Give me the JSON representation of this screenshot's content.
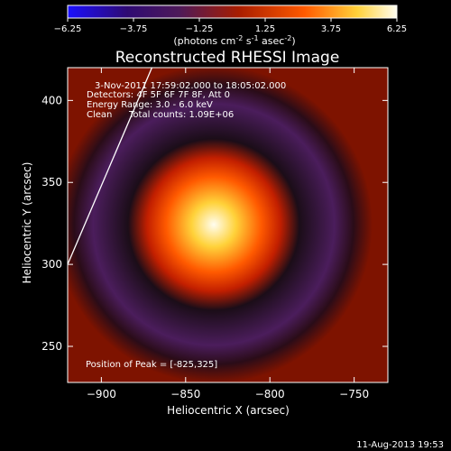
{
  "chart_data": {
    "type": "heatmap",
    "title": "Reconstructed RHESSI Image",
    "xlabel": "Heliocentric X (arcsec)",
    "ylabel": "Heliocentric Y (arcsec)",
    "xlim": [
      -920,
      -730
    ],
    "ylim": [
      228,
      420
    ],
    "x_ticks": [
      -900,
      -850,
      -800,
      -750
    ],
    "y_ticks": [
      250,
      300,
      350,
      400
    ],
    "colorbar": {
      "ticks": [
        -6.25,
        -3.75,
        -1.25,
        1.25,
        3.75,
        6.25
      ],
      "range": [
        -6.25,
        6.25
      ],
      "label": "(photons cm-2 s-1 asec-2)",
      "colors": [
        "#1b10ff",
        "#2e0a73",
        "#4e1a59",
        "#a81d00",
        "#ff5a00",
        "#ffd23a",
        "#fffdf0"
      ]
    },
    "peak": {
      "x": -825,
      "y": 325,
      "value": 6.25
    },
    "annotations": [
      "3-Nov-2011 17:59:02.000 to 18:05:02.000",
      "Detectors: 4F 5F 6F 7F 8F, Att 0",
      "Energy Range: 3.0 - 6.0 keV",
      "Clean",
      "Total counts: 1.09E+06"
    ],
    "peak_label": "Position of Peak = [-825,325]",
    "limb_line": [
      [
        -870,
        420
      ],
      [
        -920,
        300
      ]
    ],
    "timestamp": "11-Aug-2013 19:53"
  }
}
